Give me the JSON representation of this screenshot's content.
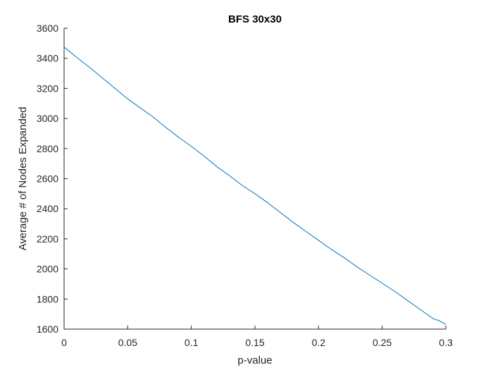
{
  "chart_data": {
    "type": "line",
    "title": "BFS 30x30",
    "xlabel": "p-value",
    "ylabel": "Average # of Nodes Expanded",
    "xlim": [
      0,
      0.3
    ],
    "ylim": [
      1600,
      3600
    ],
    "xticks": [
      0,
      0.05,
      0.1,
      0.15,
      0.2,
      0.25,
      0.3
    ],
    "xtick_labels": [
      "0",
      "0.05",
      "0.1",
      "0.15",
      "0.2",
      "0.25",
      "0.3"
    ],
    "yticks": [
      1600,
      1800,
      2000,
      2200,
      2400,
      2600,
      2800,
      3000,
      3200,
      3400,
      3600
    ],
    "ytick_labels": [
      "1600",
      "1800",
      "2000",
      "2200",
      "2400",
      "2600",
      "2800",
      "3000",
      "3200",
      "3400",
      "3600"
    ],
    "grid": false,
    "line_color": "#0072BD",
    "series": [
      {
        "x": [
          0,
          0.01,
          0.02,
          0.03,
          0.04,
          0.05,
          0.06,
          0.07,
          0.08,
          0.09,
          0.1,
          0.11,
          0.12,
          0.13,
          0.14,
          0.15,
          0.16,
          0.17,
          0.18,
          0.19,
          0.2,
          0.21,
          0.22,
          0.23,
          0.24,
          0.25,
          0.26,
          0.27,
          0.28,
          0.29,
          0.295,
          0.3
        ],
        "values": [
          3475,
          3405,
          3340,
          3270,
          3200,
          3130,
          3070,
          3010,
          2940,
          2875,
          2815,
          2750,
          2680,
          2620,
          2555,
          2500,
          2440,
          2375,
          2310,
          2250,
          2190,
          2130,
          2075,
          2015,
          1960,
          1905,
          1850,
          1790,
          1730,
          1670,
          1655,
          1630
        ]
      }
    ]
  }
}
